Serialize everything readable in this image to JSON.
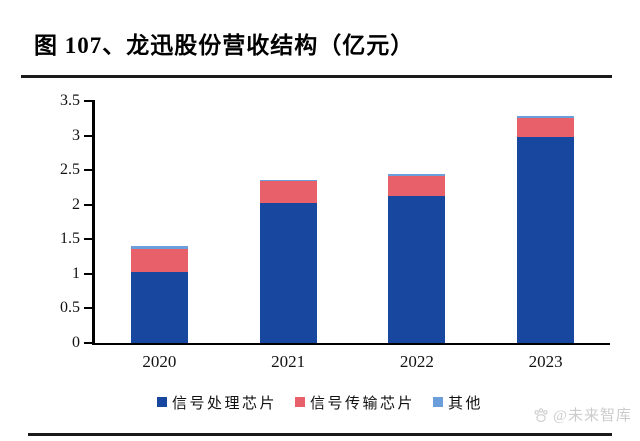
{
  "figure": {
    "title": "图 107、龙迅股份营收结构（亿元）"
  },
  "watermark": {
    "icon": "paw-icon",
    "text": "@未来智库"
  },
  "chart_data": {
    "type": "bar",
    "stacked": true,
    "title": "图 107、龙迅股份营收结构（亿元）",
    "unit": "亿元",
    "categories": [
      "2020",
      "2021",
      "2022",
      "2023"
    ],
    "series": [
      {
        "name": "信号处理芯片",
        "color": "#17479E",
        "values": [
          1.03,
          2.02,
          2.13,
          2.98
        ]
      },
      {
        "name": "信号传输芯片",
        "color": "#E8606A",
        "values": [
          0.33,
          0.32,
          0.29,
          0.28
        ]
      },
      {
        "name": "其他",
        "color": "#6D9EDC",
        "values": [
          0.04,
          0.02,
          0.02,
          0.03
        ]
      }
    ],
    "totals": [
      1.4,
      2.36,
      2.44,
      3.29
    ],
    "ylim": [
      0,
      3.5
    ],
    "yticks": [
      0,
      0.5,
      1,
      1.5,
      2,
      2.5,
      3,
      3.5
    ],
    "grid": false,
    "legend_position": "bottom",
    "axis_color": "#000000"
  }
}
